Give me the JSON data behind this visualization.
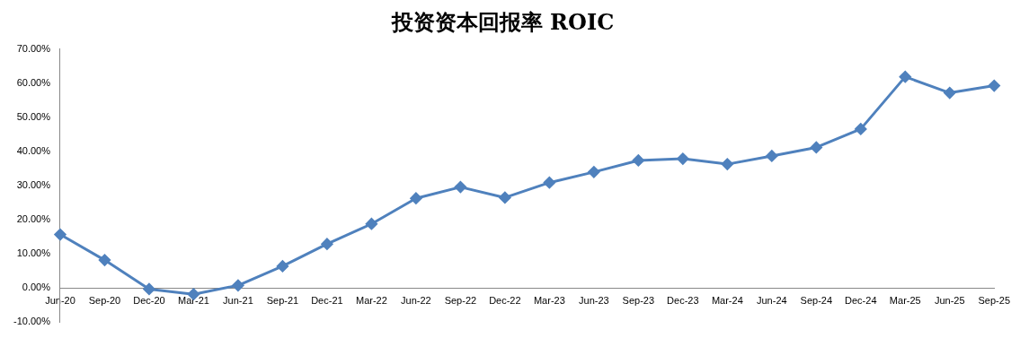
{
  "chart_data": {
    "type": "line",
    "title": "投资资本回报率 ROIC",
    "categories": [
      "Jun-20",
      "Sep-20",
      "Dec-20",
      "Mar-21",
      "Jun-21",
      "Sep-21",
      "Dec-21",
      "Mar-22",
      "Jun-22",
      "Sep-22",
      "Dec-22",
      "Mar-23",
      "Jun-23",
      "Sep-23",
      "Dec-23",
      "Mar-24",
      "Jun-24",
      "Sep-24",
      "Dec-24",
      "Mar-25",
      "Jun-25",
      "Sep-25"
    ],
    "series": [
      {
        "color": "#4f81bd",
        "values": [
          15.7,
          8.2,
          -0.3,
          -1.8,
          0.8,
          6.4,
          12.9,
          18.8,
          26.3,
          29.6,
          26.5,
          30.9,
          34.0,
          37.4,
          37.9,
          36.3,
          38.7,
          41.2,
          46.6,
          61.9,
          57.2,
          59.3
        ]
      }
    ],
    "ylim": [
      -10,
      70
    ],
    "yticks": [
      {
        "value": -10,
        "label": "-10.00%"
      },
      {
        "value": 0,
        "label": "0.00%"
      },
      {
        "value": 10,
        "label": "10.00%"
      },
      {
        "value": 20,
        "label": "20.00%"
      },
      {
        "value": 30,
        "label": "30.00%"
      },
      {
        "value": 40,
        "label": "40.00%"
      },
      {
        "value": 50,
        "label": "50.00%"
      },
      {
        "value": 60,
        "label": "60.00%"
      },
      {
        "value": 70,
        "label": "70.00%"
      }
    ],
    "grid": false,
    "legend": false,
    "marker": "diamond",
    "line_style": "solid"
  }
}
